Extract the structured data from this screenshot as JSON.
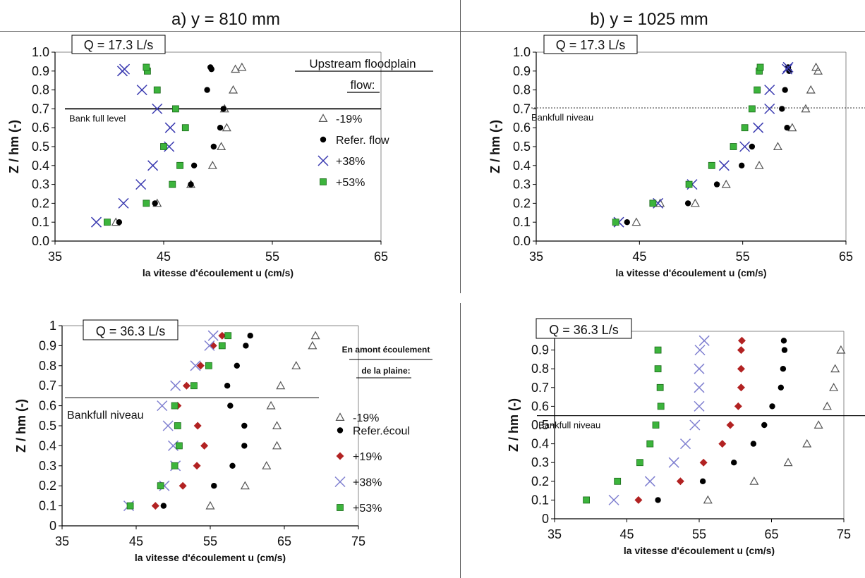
{
  "column_titles": [
    "a) y = 810 mm",
    "b) y = 1025 mm"
  ],
  "chart_data": [
    {
      "type": "scatter",
      "title": "Q = 17.3 L/s",
      "xlabel": "la vitesse d'écoulement u (cm/s)",
      "ylabel": "Z / hm (-)",
      "xlim": [
        35,
        65
      ],
      "ylim": [
        0,
        1
      ],
      "xticks": [
        "35",
        "45",
        "55",
        "65"
      ],
      "yticks": [
        "0.0",
        "0.1",
        "0.2",
        "0.3",
        "0.4",
        "0.5",
        "0.6",
        "0.7",
        "0.8",
        "0.9",
        "1.0"
      ],
      "bank_level": 0.7,
      "bank_label": "Bank full level",
      "bank_style": "solid",
      "legend_title": [
        "Upstream floodplain",
        "flow:"
      ],
      "series": [
        {
          "name": "-19%",
          "marker": "triangle",
          "color": "#555555",
          "points": [
            [
              40.6,
              0.1
            ],
            [
              44.4,
              0.2
            ],
            [
              47.5,
              0.3
            ],
            [
              49.5,
              0.4
            ],
            [
              50.3,
              0.5
            ],
            [
              50.8,
              0.6
            ],
            [
              50.6,
              0.7
            ],
            [
              51.4,
              0.8
            ],
            [
              51.6,
              0.91
            ],
            [
              52.2,
              0.92
            ]
          ]
        },
        {
          "name": "Refer. flow",
          "marker": "circle",
          "color": "#000000",
          "points": [
            [
              40.9,
              0.1
            ],
            [
              44.2,
              0.2
            ],
            [
              47.5,
              0.3
            ],
            [
              47.8,
              0.4
            ],
            [
              49.6,
              0.5
            ],
            [
              50.2,
              0.6
            ],
            [
              50.5,
              0.7
            ],
            [
              49.0,
              0.8
            ],
            [
              49.4,
              0.91
            ],
            [
              49.3,
              0.92
            ]
          ]
        },
        {
          "name": "+38%",
          "marker": "x",
          "color": "#3a3ab0",
          "points": [
            [
              38.8,
              0.1
            ],
            [
              41.3,
              0.2
            ],
            [
              42.9,
              0.3
            ],
            [
              44.0,
              0.4
            ],
            [
              45.5,
              0.5
            ],
            [
              45.6,
              0.6
            ],
            [
              44.4,
              0.7
            ],
            [
              43.0,
              0.8
            ],
            [
              41.2,
              0.9
            ],
            [
              41.4,
              0.91
            ]
          ]
        },
        {
          "name": "+53%",
          "marker": "square",
          "color": "#3cb43c",
          "points": [
            [
              39.8,
              0.1
            ],
            [
              43.4,
              0.2
            ],
            [
              45.8,
              0.3
            ],
            [
              46.5,
              0.4
            ],
            [
              45.0,
              0.5
            ],
            [
              47.0,
              0.6
            ],
            [
              46.1,
              0.7
            ],
            [
              44.4,
              0.8
            ],
            [
              43.5,
              0.9
            ],
            [
              43.4,
              0.92
            ]
          ]
        }
      ]
    },
    {
      "type": "scatter",
      "title": "Q = 17.3 L/s",
      "xlabel": "la vitesse d'écoulement u (cm/s)",
      "ylabel": "Z / hm (-)",
      "xlim": [
        35,
        65
      ],
      "ylim": [
        0,
        1
      ],
      "xticks": [
        "35",
        "45",
        "55",
        "65"
      ],
      "yticks": [
        "0.0",
        "0.1",
        "0.2",
        "0.3",
        "0.4",
        "0.5",
        "0.6",
        "0.7",
        "0.8",
        "0.9",
        "1.0"
      ],
      "bank_level": 0.705,
      "bank_label": "Bankfull  niveau",
      "bank_style": "dotted",
      "series": [
        {
          "name": "-19%",
          "marker": "triangle",
          "color": "#555555",
          "points": [
            [
              44.7,
              0.1
            ],
            [
              47.0,
              0.2
            ],
            [
              50.4,
              0.2
            ],
            [
              53.4,
              0.3
            ],
            [
              56.6,
              0.4
            ],
            [
              58.4,
              0.5
            ],
            [
              59.8,
              0.6
            ],
            [
              61.1,
              0.7
            ],
            [
              61.6,
              0.8
            ],
            [
              62.3,
              0.9
            ],
            [
              62.1,
              0.92
            ]
          ]
        },
        {
          "name": "Refer. flow",
          "marker": "circle",
          "color": "#000000",
          "points": [
            [
              43.8,
              0.1
            ],
            [
              49.7,
              0.2
            ],
            [
              52.5,
              0.3
            ],
            [
              54.9,
              0.4
            ],
            [
              55.9,
              0.5
            ],
            [
              59.3,
              0.6
            ],
            [
              58.8,
              0.7
            ],
            [
              59.1,
              0.8
            ],
            [
              59.5,
              0.9
            ],
            [
              59.4,
              0.92
            ]
          ]
        },
        {
          "name": "+38%",
          "marker": "x",
          "color": "#3a3ab0",
          "points": [
            [
              43.0,
              0.1
            ],
            [
              46.8,
              0.2
            ],
            [
              50.1,
              0.3
            ],
            [
              53.2,
              0.4
            ],
            [
              55.2,
              0.5
            ],
            [
              56.5,
              0.6
            ],
            [
              57.6,
              0.7
            ],
            [
              57.6,
              0.8
            ],
            [
              59.3,
              0.91
            ],
            [
              59.4,
              0.92
            ]
          ]
        },
        {
          "name": "+53%",
          "marker": "square",
          "color": "#3cb43c",
          "points": [
            [
              42.7,
              0.1
            ],
            [
              46.3,
              0.2
            ],
            [
              49.8,
              0.3
            ],
            [
              52.0,
              0.4
            ],
            [
              54.1,
              0.5
            ],
            [
              55.2,
              0.6
            ],
            [
              55.9,
              0.7
            ],
            [
              56.4,
              0.8
            ],
            [
              56.6,
              0.9
            ],
            [
              56.7,
              0.92
            ]
          ]
        }
      ]
    },
    {
      "type": "scatter",
      "title": "Q = 36.3 L/s",
      "xlabel": "la vitesse d'écoulement u (cm/s)",
      "ylabel": "Z / hm (-)",
      "xlim": [
        35,
        75
      ],
      "ylim": [
        0,
        1
      ],
      "xticks": [
        "35",
        "45",
        "55",
        "65",
        "75"
      ],
      "yticks": [
        "0",
        "0.1",
        "0.2",
        "0.3",
        "0.4",
        "0.5",
        "0.6",
        "0.7",
        "0.8",
        "0.9",
        "1"
      ],
      "bank_level": 0.64,
      "bank_label": "Bankfull niveau",
      "bank_style": "solid",
      "legend_title": [
        "En amont écoulement",
        "de la plaine:"
      ],
      "series": [
        {
          "name": "-19%",
          "marker": "triangle",
          "color": "#555555",
          "points": [
            [
              55.0,
              0.1
            ],
            [
              59.7,
              0.2
            ],
            [
              62.6,
              0.3
            ],
            [
              64.0,
              0.4
            ],
            [
              64.0,
              0.5
            ],
            [
              63.2,
              0.6
            ],
            [
              64.5,
              0.7
            ],
            [
              66.6,
              0.8
            ],
            [
              68.8,
              0.9
            ],
            [
              69.2,
              0.95
            ]
          ]
        },
        {
          "name": "Refer.écoul",
          "marker": "circle",
          "color": "#000000",
          "points": [
            [
              48.7,
              0.1
            ],
            [
              55.5,
              0.2
            ],
            [
              58.0,
              0.3
            ],
            [
              59.6,
              0.4
            ],
            [
              59.6,
              0.5
            ],
            [
              57.7,
              0.6
            ],
            [
              57.3,
              0.7
            ],
            [
              58.6,
              0.8
            ],
            [
              59.8,
              0.9
            ],
            [
              60.4,
              0.95
            ]
          ]
        },
        {
          "name": "+19%",
          "marker": "diamond",
          "color": "#b22222",
          "points": [
            [
              47.6,
              0.1
            ],
            [
              51.3,
              0.2
            ],
            [
              53.2,
              0.3
            ],
            [
              54.2,
              0.4
            ],
            [
              53.3,
              0.5
            ],
            [
              50.6,
              0.6
            ],
            [
              51.8,
              0.7
            ],
            [
              53.7,
              0.8
            ],
            [
              55.4,
              0.9
            ],
            [
              56.6,
              0.95
            ]
          ]
        },
        {
          "name": "+38%",
          "marker": "x",
          "color": "#7f7fd0",
          "points": [
            [
              44.0,
              0.1
            ],
            [
              48.8,
              0.2
            ],
            [
              50.3,
              0.3
            ],
            [
              50.0,
              0.4
            ],
            [
              49.3,
              0.5
            ],
            [
              48.5,
              0.6
            ],
            [
              50.3,
              0.7
            ],
            [
              53.0,
              0.8
            ],
            [
              54.9,
              0.9
            ],
            [
              55.4,
              0.95
            ]
          ]
        },
        {
          "name": "+53%",
          "marker": "square",
          "color": "#3cb43c",
          "points": [
            [
              44.2,
              0.1
            ],
            [
              48.3,
              0.2
            ],
            [
              50.2,
              0.3
            ],
            [
              50.8,
              0.4
            ],
            [
              50.6,
              0.5
            ],
            [
              50.2,
              0.6
            ],
            [
              52.8,
              0.7
            ],
            [
              54.8,
              0.8
            ],
            [
              56.6,
              0.9
            ],
            [
              57.4,
              0.95
            ]
          ]
        }
      ]
    },
    {
      "type": "scatter",
      "title": "Q = 36.3 L/s",
      "xlabel": "la vitesse d'écoulement u (cm/s)",
      "ylabel": "Z / hm (-)",
      "xlim": [
        35,
        75
      ],
      "ylim": [
        0,
        1
      ],
      "xticks": [
        "35",
        "45",
        "55",
        "65",
        "75"
      ],
      "yticks": [
        "0",
        "0.1",
        "0.2",
        "0.3",
        "0.4",
        "0.5",
        "0.6",
        "0.7",
        "0.8",
        "0.9",
        "1"
      ],
      "bank_level": 0.55,
      "bank_label": "Bankfull niveau",
      "bank_style": "solid",
      "series": [
        {
          "name": "-19%",
          "marker": "triangle",
          "color": "#555555",
          "points": [
            [
              56.2,
              0.1
            ],
            [
              62.6,
              0.2
            ],
            [
              67.3,
              0.3
            ],
            [
              69.9,
              0.4
            ],
            [
              71.5,
              0.5
            ],
            [
              72.7,
              0.6
            ],
            [
              73.6,
              0.7
            ],
            [
              73.8,
              0.8
            ],
            [
              74.6,
              0.9
            ]
          ]
        },
        {
          "name": "Refer.écoul",
          "marker": "circle",
          "color": "#000000",
          "points": [
            [
              49.3,
              0.1
            ],
            [
              55.5,
              0.2
            ],
            [
              59.8,
              0.3
            ],
            [
              62.5,
              0.4
            ],
            [
              64.0,
              0.5
            ],
            [
              65.1,
              0.6
            ],
            [
              66.3,
              0.7
            ],
            [
              66.6,
              0.8
            ],
            [
              66.8,
              0.9
            ],
            [
              66.7,
              0.95
            ]
          ]
        },
        {
          "name": "+19%",
          "marker": "diamond",
          "color": "#b22222",
          "points": [
            [
              46.6,
              0.1
            ],
            [
              52.4,
              0.2
            ],
            [
              55.6,
              0.3
            ],
            [
              58.2,
              0.4
            ],
            [
              59.3,
              0.5
            ],
            [
              60.4,
              0.6
            ],
            [
              60.8,
              0.7
            ],
            [
              60.8,
              0.8
            ],
            [
              60.8,
              0.9
            ],
            [
              60.9,
              0.95
            ]
          ]
        },
        {
          "name": "+38%",
          "marker": "x",
          "color": "#7f7fd0",
          "points": [
            [
              43.2,
              0.1
            ],
            [
              48.2,
              0.2
            ],
            [
              51.5,
              0.3
            ],
            [
              53.1,
              0.4
            ],
            [
              54.4,
              0.5
            ],
            [
              55.0,
              0.6
            ],
            [
              55.0,
              0.7
            ],
            [
              55.0,
              0.8
            ],
            [
              55.1,
              0.9
            ],
            [
              55.7,
              0.95
            ]
          ]
        },
        {
          "name": "+53%",
          "marker": "square",
          "color": "#3cb43c",
          "points": [
            [
              39.4,
              0.1
            ],
            [
              43.7,
              0.2
            ],
            [
              46.8,
              0.3
            ],
            [
              48.2,
              0.4
            ],
            [
              49.0,
              0.5
            ],
            [
              49.7,
              0.6
            ],
            [
              49.6,
              0.7
            ],
            [
              49.3,
              0.8
            ],
            [
              49.3,
              0.9
            ]
          ]
        }
      ]
    }
  ]
}
